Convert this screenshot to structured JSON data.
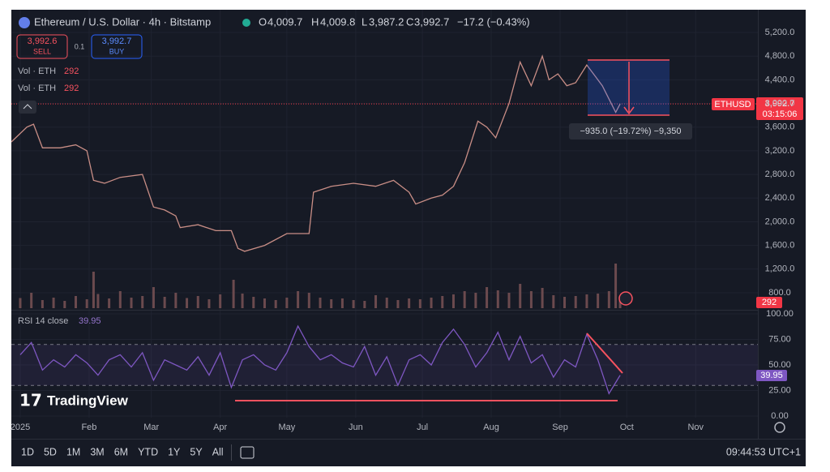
{
  "header": {
    "symbol": "Ethereum / U.S. Dollar · 4h · Bitstamp",
    "open_label": "O",
    "open": "4,009.7",
    "high_label": "H",
    "high": "4,009.8",
    "low_label": "L",
    "low": "3,987.2",
    "close_label": "C",
    "close": "3,992.7",
    "change": "−17.2 (−0.43%)",
    "sell_price": "3,992.6",
    "sell": "SELL",
    "quantity": "0.1",
    "buy_price": "3,992.7",
    "buy": "BUY",
    "volume_label": "Vol · ETH",
    "volume_value": "292"
  },
  "labels": {
    "ticker": "ETHUSD",
    "last_price": "3,992.7",
    "countdown": "03:15:06",
    "volume": "292",
    "rsi": "39.95",
    "rsi_title": "RSI 14 close",
    "rsi_value": "39.95",
    "measure": "−935.0 (−19.72%) −9,350",
    "logo": "TradingView"
  },
  "toolbar": {
    "ranges": [
      "1D",
      "5D",
      "1M",
      "3M",
      "6M",
      "YTD",
      "1Y",
      "5Y",
      "All"
    ],
    "clock": "09:44:53 UTC+1"
  },
  "chart_data": [
    {
      "type": "line",
      "color": "#c98e86",
      "x": [
        -4,
        3,
        6,
        10,
        18,
        25,
        30,
        33,
        38,
        45,
        55,
        60,
        65,
        70,
        72,
        80,
        88,
        95,
        98,
        101,
        110,
        120,
        125,
        130,
        132,
        140,
        150,
        160,
        168,
        175,
        178,
        185,
        190,
        195,
        200,
        206,
        210,
        214,
        220,
        225,
        230,
        235,
        238,
        242,
        246,
        250,
        255,
        258,
        262,
        266,
        268,
        270
      ],
      "values": [
        3350,
        3600,
        3650,
        3250,
        3250,
        3300,
        3200,
        2700,
        2650,
        2750,
        2800,
        2250,
        2200,
        2100,
        1900,
        1950,
        1850,
        1850,
        1550,
        1500,
        1600,
        1800,
        1800,
        1800,
        2500,
        2600,
        2650,
        2600,
        2700,
        2500,
        2300,
        2400,
        2450,
        2600,
        3000,
        3700,
        3600,
        3420,
        4000,
        4700,
        4300,
        4800,
        4400,
        4500,
        4300,
        4350,
        4650,
        4500,
        4300,
        4000,
        3850,
        3992.7
      ],
      "xlim": [
        -4,
        332
      ],
      "xticks": [
        {
          "value": 0,
          "label": "2025"
        },
        {
          "value": 31,
          "label": "Feb"
        },
        {
          "value": 59,
          "label": "Mar"
        },
        {
          "value": 90,
          "label": "Apr"
        },
        {
          "value": 120,
          "label": "May"
        },
        {
          "value": 151,
          "label": "Jun"
        },
        {
          "value": 181,
          "label": "Jul"
        },
        {
          "value": 212,
          "label": "Aug"
        },
        {
          "value": 243,
          "label": "Sep"
        },
        {
          "value": 273,
          "label": "Oct"
        },
        {
          "value": 304,
          "label": "Nov"
        }
      ],
      "ylim": [
        512,
        5584
      ],
      "yticks": [
        {
          "value": 800,
          "label": "800.0"
        },
        {
          "value": 1200,
          "label": "1,200.0"
        },
        {
          "value": 1600,
          "label": "1,600.0"
        },
        {
          "value": 2000,
          "label": "2,000.0"
        },
        {
          "value": 2400,
          "label": "2,400.0"
        },
        {
          "value": 2800,
          "label": "2,800.0"
        },
        {
          "value": 3200,
          "label": "3,200.0"
        },
        {
          "value": 3600,
          "label": "3,600.0"
        },
        {
          "value": 4000,
          "label": "4,000.0"
        },
        {
          "value": 4400,
          "label": "4,400.0"
        },
        {
          "value": 4800,
          "label": "4,800.0"
        },
        {
          "value": 5200,
          "label": "5,200.0"
        }
      ]
    },
    {
      "type": "bar",
      "color": "#6b4a4e",
      "x": [
        0,
        5,
        10,
        15,
        20,
        25,
        30,
        33,
        35,
        40,
        45,
        50,
        55,
        60,
        65,
        70,
        75,
        80,
        85,
        90,
        96,
        100,
        105,
        110,
        115,
        120,
        125,
        130,
        135,
        140,
        145,
        150,
        155,
        160,
        165,
        170,
        175,
        180,
        185,
        190,
        195,
        200,
        205,
        210,
        215,
        220,
        225,
        230,
        235,
        240,
        245,
        250,
        255,
        260,
        265,
        268,
        270
      ],
      "values": [
        250,
        380,
        200,
        260,
        180,
        300,
        220,
        900,
        350,
        240,
        420,
        260,
        300,
        520,
        280,
        380,
        250,
        300,
        220,
        340,
        700,
        360,
        280,
        240,
        200,
        260,
        420,
        380,
        260,
        220,
        240,
        200,
        180,
        320,
        260,
        200,
        240,
        220,
        260,
        300,
        340,
        420,
        380,
        520,
        440,
        380,
        600,
        420,
        500,
        320,
        280,
        300,
        340,
        360,
        420,
        1100,
        292
      ],
      "ylim": [
        0,
        1600
      ]
    },
    {
      "type": "line",
      "color": "#7e57c2",
      "x": [
        0,
        5,
        10,
        15,
        20,
        25,
        30,
        35,
        40,
        45,
        50,
        55,
        60,
        65,
        70,
        75,
        80,
        85,
        90,
        95,
        100,
        105,
        110,
        115,
        120,
        125,
        130,
        135,
        140,
        145,
        150,
        155,
        160,
        165,
        170,
        175,
        180,
        185,
        190,
        195,
        200,
        205,
        210,
        215,
        220,
        225,
        230,
        235,
        240,
        245,
        250,
        255,
        260,
        265,
        270
      ],
      "values": [
        60,
        72,
        45,
        55,
        48,
        60,
        52,
        40,
        55,
        60,
        48,
        62,
        35,
        55,
        50,
        45,
        58,
        40,
        62,
        28,
        55,
        60,
        50,
        45,
        62,
        88,
        68,
        55,
        60,
        52,
        48,
        68,
        40,
        58,
        30,
        55,
        60,
        50,
        72,
        85,
        70,
        48,
        62,
        82,
        55,
        78,
        52,
        60,
        38,
        55,
        48,
        80,
        55,
        22,
        39.95
      ],
      "ylim": [
        0,
        100
      ],
      "bands": [
        30,
        70
      ],
      "yticks": [
        {
          "value": 0,
          "label": "0.00"
        },
        {
          "value": 25,
          "label": "25.00"
        },
        {
          "value": 50,
          "label": "50.00"
        },
        {
          "value": 75,
          "label": "75.00"
        },
        {
          "value": 100,
          "label": "100.00"
        }
      ]
    }
  ]
}
